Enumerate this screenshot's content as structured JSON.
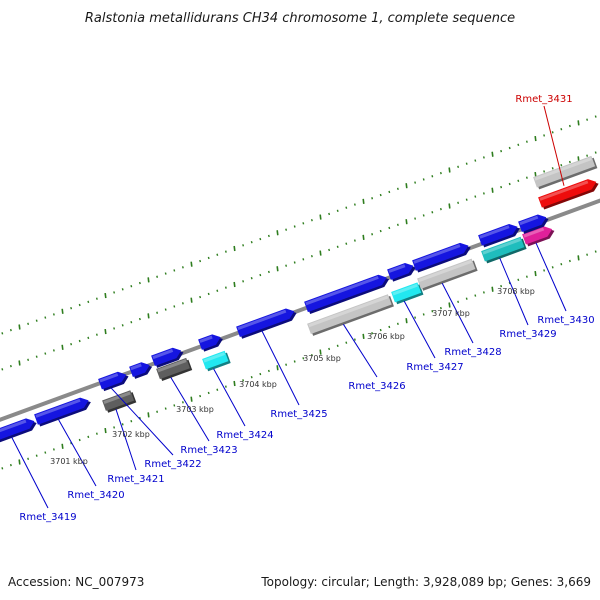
{
  "title": "Ralstonia metallidurans CH34 chromosome 1, complete sequence",
  "footer": {
    "accession": "Accession: NC_007973",
    "topology": "Topology: circular; Length: 3,928,089 bp; Genes: 3,669"
  },
  "colors": {
    "background": "#ffffff",
    "backbone": "#8a8a8a",
    "tick": "#2e7d1e",
    "label_blue": "#0000cc",
    "label_red": "#cc0000",
    "gene_blue": "#1515e0",
    "gene_gray_light": "#c4c4c4",
    "gene_gray_dark": "#5e5e5e",
    "gene_cyan": "#22e8f0",
    "gene_teal": "#1fbdbd",
    "gene_magenta": "#e0209a",
    "gene_red": "#ee0c0c"
  },
  "kbp_ticks": [
    "3701 kbp",
    "3702 kbp",
    "3703 kbp",
    "3704 kbp",
    "3705 kbp",
    "3706 kbp",
    "3707 kbp",
    "3708 kbp"
  ],
  "genes": [
    {
      "name": "Rmet_3419",
      "color": "gene_blue"
    },
    {
      "name": "Rmet_3420",
      "color": "gene_blue"
    },
    {
      "name": "Rmet_3421",
      "color": "gene_gray_dark"
    },
    {
      "name": "Rmet_3422",
      "color": "gene_blue"
    },
    {
      "name": "Rmet_3423",
      "color": "gene_gray_dark"
    },
    {
      "name": "Rmet_3424",
      "color": "gene_cyan"
    },
    {
      "name": "Rmet_3425",
      "color": "gene_blue"
    },
    {
      "name": "Rmet_3426",
      "color": "gene_gray_light"
    },
    {
      "name": "Rmet_3427",
      "color": "gene_cyan"
    },
    {
      "name": "Rmet_3428",
      "color": "gene_gray_light"
    },
    {
      "name": "Rmet_3429",
      "color": "gene_teal"
    },
    {
      "name": "Rmet_3430",
      "color": "gene_magenta"
    },
    {
      "name": "Rmet_3431",
      "color": "gene_red"
    }
  ]
}
